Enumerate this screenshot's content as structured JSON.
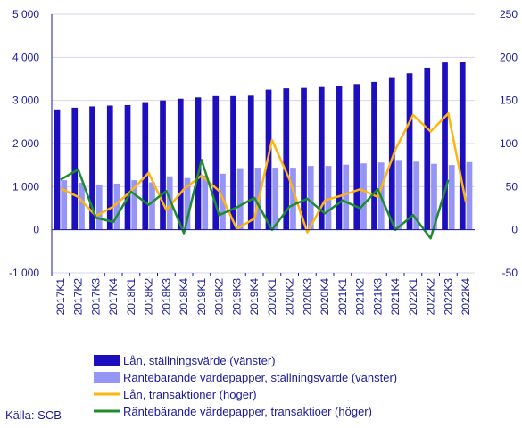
{
  "chart_data": {
    "type": "bar",
    "categories": [
      "2017K1",
      "2017K2",
      "2017K3",
      "2017K4",
      "2018K1",
      "2018K2",
      "2018K3",
      "2018K4",
      "2019K1",
      "2019K2",
      "2019K3",
      "2019K4",
      "2020K1",
      "2020K2",
      "2020K3",
      "2020K4",
      "2021K1",
      "2021K2",
      "2021K3",
      "2021K4",
      "2022K1",
      "2022K2",
      "2022K3",
      "2022K4"
    ],
    "y_left": {
      "min": -1000,
      "max": 5000,
      "ticks": [
        -1000,
        0,
        1000,
        2000,
        3000,
        4000,
        5000
      ],
      "tick_labels": [
        "-1 000",
        "0",
        "1 000",
        "2 000",
        "3 000",
        "4 000",
        "5 000"
      ]
    },
    "y_right": {
      "min": -50,
      "max": 250,
      "ticks": [
        -50,
        0,
        50,
        100,
        150,
        200,
        250
      ],
      "tick_labels": [
        "-50",
        "0",
        "50",
        "100",
        "150",
        "200",
        "250"
      ]
    },
    "series": [
      {
        "name": "Lån, ställningsvärde (vänster)",
        "type": "bar",
        "axis": "left",
        "color": "#1e0fbe",
        "values": [
          2790,
          2830,
          2860,
          2880,
          2890,
          2960,
          3000,
          3040,
          3070,
          3100,
          3100,
          3110,
          3250,
          3280,
          3290,
          3310,
          3340,
          3380,
          3430,
          3540,
          3630,
          3760,
          3880,
          3900
        ]
      },
      {
        "name": "Räntebärande värdepapper, ställningsvärde (vänster)",
        "type": "bar",
        "axis": "left",
        "color": "#9595f5",
        "values": [
          1150,
          1090,
          1050,
          1070,
          1150,
          1100,
          1240,
          1200,
          1260,
          1300,
          1430,
          1440,
          1440,
          1440,
          1480,
          1480,
          1510,
          1540,
          1560,
          1620,
          1580,
          1530,
          1500,
          1570
        ]
      },
      {
        "name": "Lån, transaktioner (höger)",
        "type": "line",
        "axis": "right",
        "color": "#ffb40f",
        "values": [
          48,
          38,
          16,
          27,
          45,
          66,
          23,
          47,
          63,
          45,
          1,
          13,
          104,
          58,
          -3,
          34,
          40,
          47,
          38,
          93,
          133,
          114,
          135,
          32
        ]
      },
      {
        "name": "Räntebärande värdepapper, transaktioer (höger)",
        "type": "line",
        "axis": "right",
        "color": "#1e8c2d",
        "values": [
          58,
          70,
          14,
          9,
          44,
          29,
          45,
          -4,
          81,
          17,
          26,
          37,
          0,
          27,
          36,
          19,
          34,
          25,
          47,
          0,
          17,
          -10,
          58,
          null
        ]
      }
    ],
    "grid": "horizontal",
    "legend_position": "bottom"
  },
  "source_text": "Källa: SCB"
}
